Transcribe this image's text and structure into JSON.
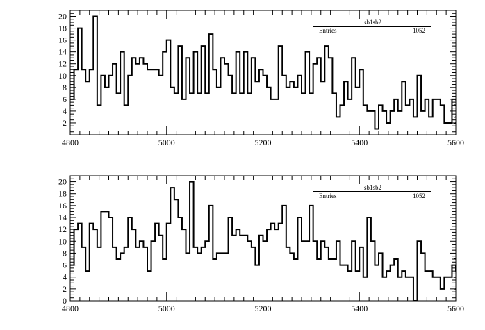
{
  "chart_data": [
    {
      "type": "step",
      "xlim": [
        4800,
        5600
      ],
      "ylim": [
        0,
        21
      ],
      "x_ticks": [
        4800,
        5000,
        5200,
        5400,
        5600
      ],
      "y_ticks": [
        2,
        4,
        6,
        8,
        10,
        12,
        14,
        16,
        18,
        20
      ],
      "x_tick_labels": [
        "4800",
        "5000",
        "5200",
        "5400",
        "5600"
      ],
      "y_tick_labels": [
        "2",
        "4",
        "6",
        "8",
        "10",
        "12",
        "14",
        "16",
        "18",
        "20"
      ],
      "bin_width": 8,
      "stats": {
        "name": "sb1sb2",
        "entries_label": "Entries",
        "entries": "1052"
      },
      "values": [
        6,
        11,
        18,
        11,
        9,
        11,
        20,
        5,
        10,
        8,
        10,
        12,
        7,
        14,
        5,
        10,
        13,
        12,
        13,
        12,
        11,
        11,
        11,
        10,
        14,
        16,
        8,
        7,
        15,
        6,
        13,
        7,
        14,
        7,
        15,
        7,
        17,
        11,
        8,
        13,
        12,
        10,
        7,
        14,
        7,
        14,
        7,
        13,
        9,
        11,
        10,
        8,
        6,
        6,
        15,
        10,
        8,
        9,
        8,
        10,
        7,
        14,
        7,
        12,
        13,
        9,
        15,
        13,
        7,
        3,
        5,
        9,
        6,
        13,
        8,
        11,
        5,
        4,
        4,
        1,
        5,
        4,
        2,
        4,
        6,
        4,
        9,
        5,
        6,
        3,
        10,
        4,
        6,
        3,
        6,
        6,
        5,
        2,
        2,
        6,
        6,
        3,
        6,
        6,
        3,
        6,
        5,
        2,
        5,
        2
      ]
    },
    {
      "type": "step",
      "xlim": [
        4800,
        5600
      ],
      "ylim": [
        0,
        21
      ],
      "x_ticks": [
        4800,
        5000,
        5200,
        5400,
        5600
      ],
      "y_ticks": [
        0,
        2,
        4,
        6,
        8,
        10,
        12,
        14,
        16,
        18,
        20
      ],
      "x_tick_labels": [
        "4800",
        "5000",
        "5200",
        "5400",
        "5600"
      ],
      "y_tick_labels": [
        "0",
        "2",
        "4",
        "6",
        "8",
        "10",
        "12",
        "14",
        "16",
        "18",
        "20"
      ],
      "bin_width": 8,
      "stats": {
        "name": "sb1sb2",
        "entries_label": "Entries",
        "entries": "1052"
      },
      "values": [
        6,
        12,
        13,
        9,
        5,
        13,
        12,
        9,
        15,
        15,
        14,
        9,
        7,
        8,
        9,
        14,
        12,
        9,
        10,
        9,
        5,
        10,
        13,
        11,
        7,
        13,
        19,
        17,
        14,
        12,
        8,
        20,
        9,
        8,
        9,
        10,
        16,
        7,
        8,
        8,
        8,
        14,
        11,
        12,
        11,
        11,
        10,
        9,
        6,
        11,
        10,
        12,
        13,
        12,
        13,
        16,
        9,
        8,
        7,
        14,
        10,
        10,
        16,
        10,
        7,
        10,
        9,
        7,
        7,
        10,
        6,
        6,
        5,
        10,
        5,
        9,
        4,
        14,
        10,
        6,
        8,
        4,
        5,
        6,
        7,
        4,
        5,
        4,
        4,
        0,
        10,
        8,
        5,
        5,
        4,
        4,
        2,
        4,
        4,
        6,
        5,
        2,
        4,
        4,
        4,
        6,
        7,
        7,
        3,
        6,
        8
      ]
    }
  ]
}
